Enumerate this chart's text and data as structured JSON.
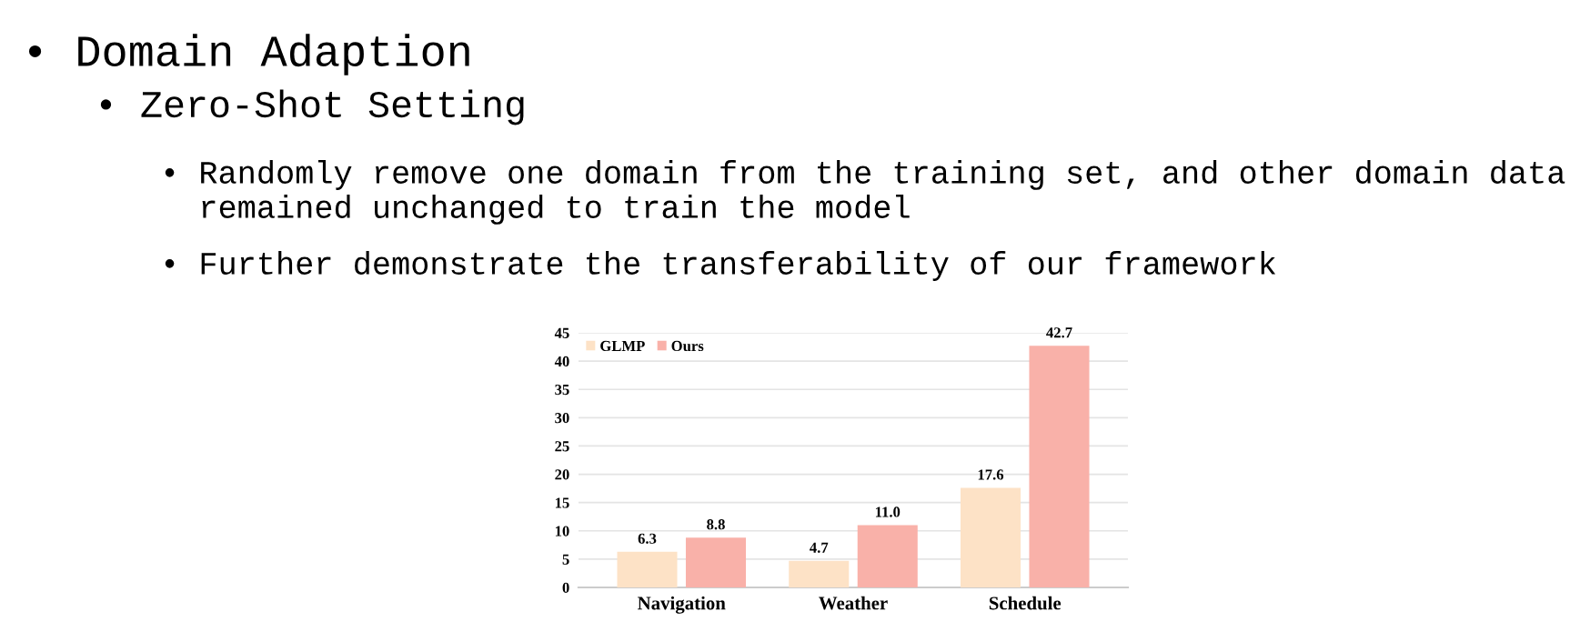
{
  "chart_data": {
    "type": "bar",
    "title": "• Domain Adaption",
    "subtitle": "• Zero-Shot Setting",
    "annotations": [
      "• Randomly remove one domain from the training set, and other domain data\n  remained unchanged to train the model",
      "• Further demonstrate the transferability of our framework"
    ],
    "categories": [
      "Navigation",
      "Weather",
      "Schedule"
    ],
    "series": [
      {
        "name": "GLMP",
        "color": "#fde2c6",
        "values": [
          6.3,
          4.7,
          17.6
        ]
      },
      {
        "name": "Ours",
        "color": "#f9b1a9",
        "values": [
          8.8,
          11.0,
          42.7
        ]
      }
    ],
    "value_labels": [
      [
        "6.3",
        "4.7",
        "17.6"
      ],
      [
        "8.8",
        "11.0",
        "42.7"
      ]
    ],
    "ylim": [
      0,
      45
    ],
    "yticks": [
      0,
      5,
      10,
      15,
      20,
      25,
      30,
      35,
      40,
      45
    ],
    "grid": "y",
    "legend": "top left"
  }
}
